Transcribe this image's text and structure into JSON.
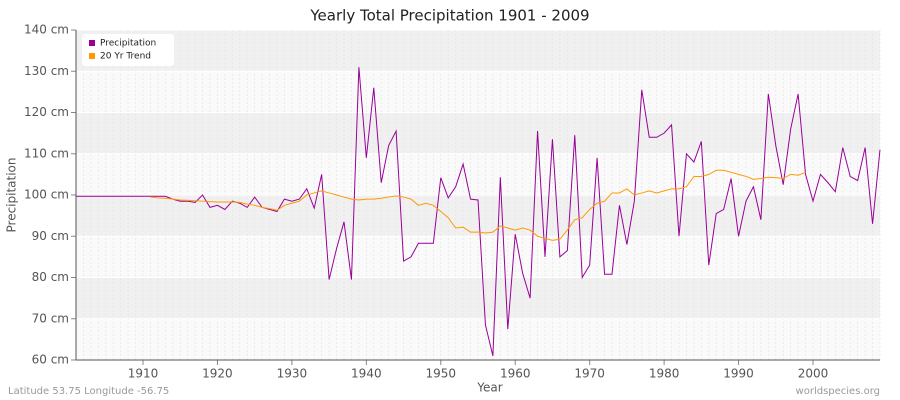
{
  "chart_data": {
    "type": "line",
    "title": "Yearly Total Precipitation 1901 - 2009",
    "x_label": "Year",
    "y_label": "Precipitation",
    "footer_left": "Latitude 53.75 Longitude -56.75",
    "footer_right": "worldspecies.org",
    "x": [
      1901,
      1902,
      1903,
      1904,
      1905,
      1906,
      1907,
      1908,
      1909,
      1910,
      1911,
      1912,
      1913,
      1914,
      1915,
      1916,
      1917,
      1918,
      1919,
      1920,
      1921,
      1922,
      1923,
      1924,
      1925,
      1926,
      1927,
      1928,
      1929,
      1930,
      1931,
      1932,
      1933,
      1934,
      1935,
      1936,
      1937,
      1938,
      1939,
      1940,
      1941,
      1942,
      1943,
      1944,
      1945,
      1946,
      1947,
      1948,
      1949,
      1950,
      1951,
      1952,
      1953,
      1954,
      1955,
      1956,
      1957,
      1958,
      1959,
      1960,
      1961,
      1962,
      1963,
      1964,
      1965,
      1966,
      1967,
      1968,
      1969,
      1970,
      1971,
      1972,
      1973,
      1974,
      1975,
      1976,
      1977,
      1978,
      1979,
      1980,
      1981,
      1982,
      1983,
      1984,
      1985,
      1986,
      1987,
      1988,
      1989,
      1990,
      1991,
      1992,
      1993,
      1994,
      1995,
      1996,
      1997,
      1998,
      1999,
      2000,
      2001,
      2002,
      2003,
      2004,
      2005,
      2006,
      2007,
      2008,
      2009
    ],
    "series": [
      {
        "name": "Precipitation",
        "color": "#990099",
        "values": [
          99.7,
          99.7,
          99.7,
          99.7,
          99.7,
          99.7,
          99.7,
          99.7,
          99.7,
          99.7,
          99.7,
          99.7,
          99.7,
          99,
          98.5,
          98.5,
          98.2,
          100,
          97,
          97.5,
          96.5,
          98.5,
          98,
          97,
          99.5,
          97,
          96.5,
          96,
          99,
          98.5,
          99,
          101.5,
          96.8,
          105,
          79.5,
          87,
          93.5,
          79.5,
          131,
          109,
          126,
          103,
          112,
          115.5,
          84,
          85,
          88.3,
          88.3,
          88.3,
          104.2,
          99.3,
          102,
          107.5,
          99,
          98.8,
          68.5,
          61,
          104.3,
          67.5,
          90.5,
          81,
          75,
          115.5,
          85,
          113.5,
          85,
          86.5,
          114.5,
          80,
          83,
          109,
          80.8,
          80.8,
          97.5,
          88,
          98.5,
          125.5,
          114,
          114,
          115,
          117,
          90,
          110,
          108,
          113,
          83,
          95.5,
          96.5,
          104,
          90,
          98.5,
          102,
          94,
          124.5,
          112,
          102.5,
          116,
          124.5,
          105,
          98.5,
          105,
          103,
          100.8,
          111.5,
          104.5,
          103.5,
          111.5,
          93,
          111
        ]
      },
      {
        "name": "20 Yr Trend",
        "color": "#ff9900",
        "values": [
          null,
          null,
          null,
          null,
          null,
          null,
          null,
          null,
          null,
          null,
          99.5,
          99.3,
          99.2,
          99,
          98.8,
          98.7,
          98.6,
          98.5,
          98.4,
          98.3,
          98.3,
          98.3,
          98.2,
          97.8,
          97.5,
          97,
          96.7,
          96.3,
          97.5,
          98,
          98.5,
          100,
          100.5,
          101,
          100.5,
          100,
          99.5,
          99,
          98.8,
          99,
          99,
          99.2,
          99.5,
          99.8,
          99.5,
          99,
          97.5,
          98,
          97.5,
          96,
          94.5,
          92,
          92.2,
          91,
          91,
          90.8,
          91,
          92.5,
          92,
          91.5,
          92,
          91.5,
          90,
          89.5,
          89,
          89.3,
          91.5,
          94,
          94.5,
          96.5,
          98,
          98.5,
          100.5,
          100.5,
          101.5,
          100,
          100.5,
          101,
          100.5,
          101,
          101.5,
          101.5,
          102,
          104.5,
          104.5,
          105,
          106,
          106,
          105.5,
          105,
          104.5,
          103.8,
          104,
          104.3,
          104.2,
          104,
          105,
          104.8,
          105.5,
          null,
          null,
          null,
          null,
          null,
          null,
          null,
          null,
          null,
          null
        ]
      }
    ],
    "xlim": [
      1901,
      2009
    ],
    "xticks": [
      1910,
      1920,
      1930,
      1940,
      1950,
      1960,
      1970,
      1980,
      1990,
      2000
    ],
    "ylim": [
      60,
      140
    ],
    "yticks": [
      {
        "value": 60,
        "label": "60 cm"
      },
      {
        "value": 70,
        "label": "70 cm"
      },
      {
        "value": 80,
        "label": "80 cm"
      },
      {
        "value": 90,
        "label": "90 cm"
      },
      {
        "value": 100,
        "label": "100 cm"
      },
      {
        "value": 110,
        "label": "110 cm"
      },
      {
        "value": 120,
        "label": "120 cm"
      },
      {
        "value": 130,
        "label": "130 cm"
      },
      {
        "value": 140,
        "label": "140 cm"
      }
    ],
    "grid": true,
    "legend": "top-left"
  }
}
